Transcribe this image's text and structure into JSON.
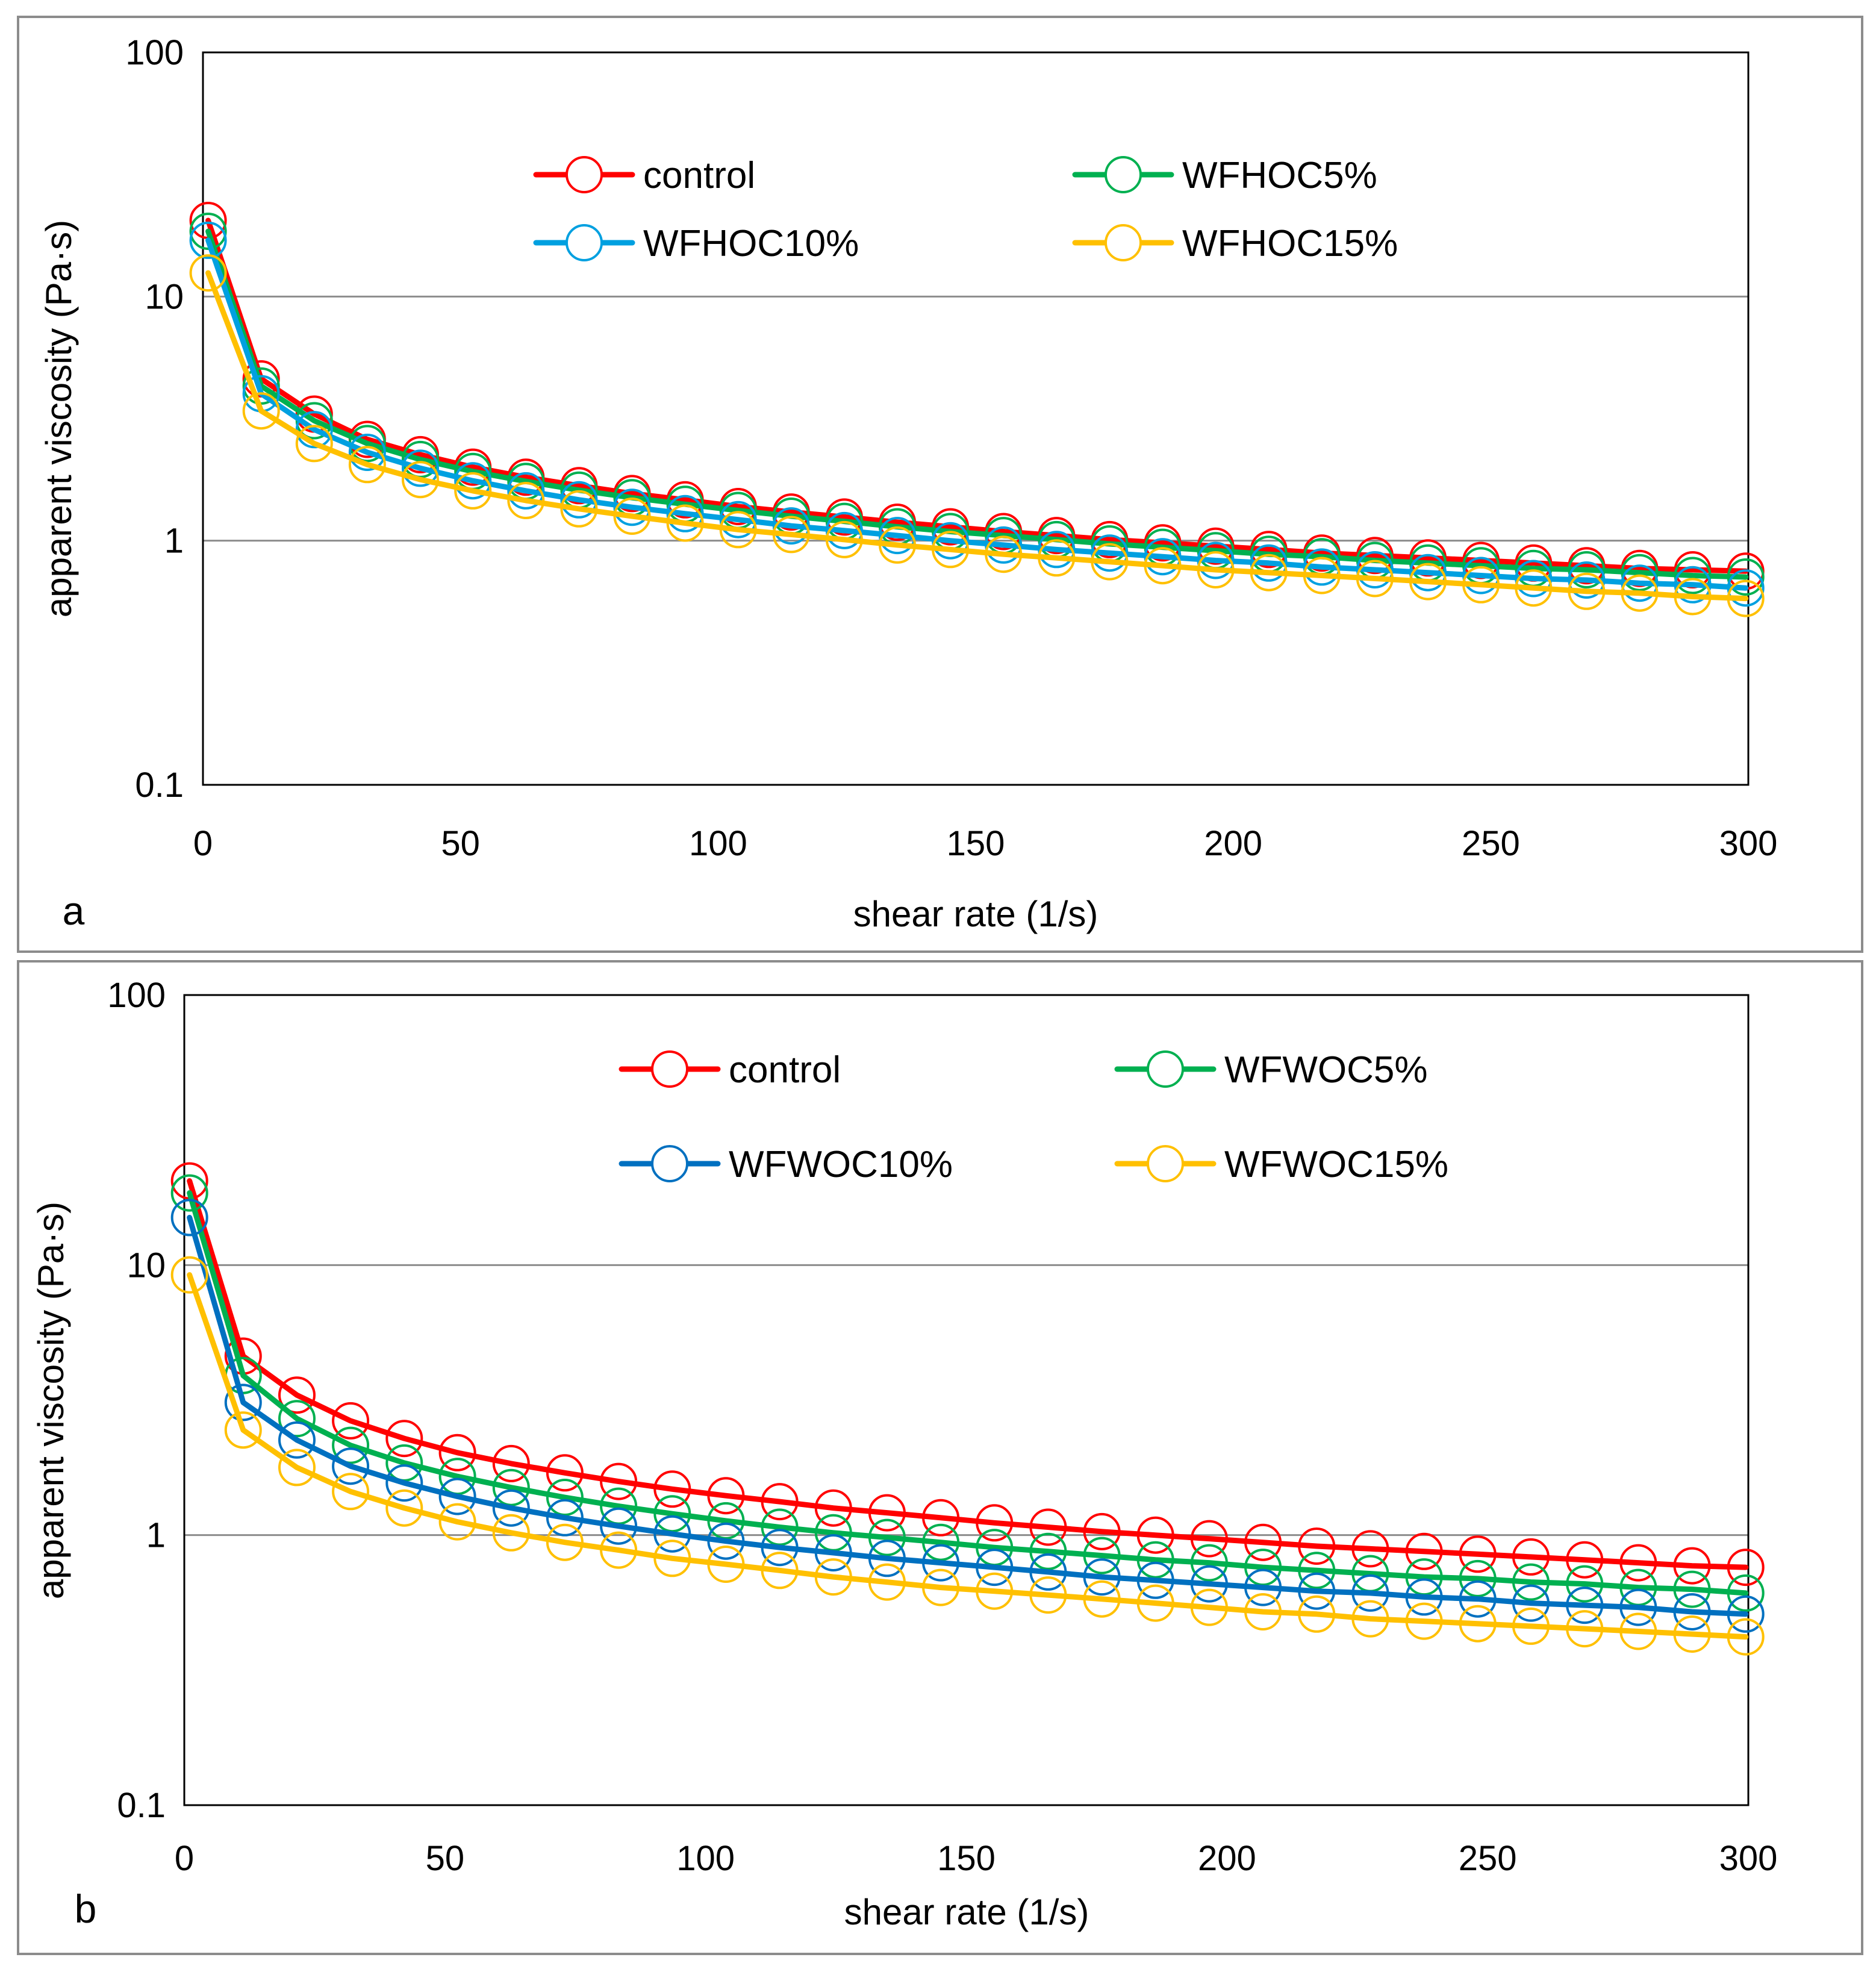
{
  "chart_data": [
    {
      "type": "line",
      "panel_label": "a",
      "title": "",
      "xlabel": "shear rate (1/s)",
      "ylabel": "apparent viscosity (Pa·s)",
      "xlim": [
        0,
        300
      ],
      "ylim": [
        0.1,
        100
      ],
      "yscale": "log",
      "xticks": [
        "0",
        "50",
        "100",
        "150",
        "200",
        "250",
        "300"
      ],
      "yticks": [
        "0.1",
        "1",
        "10",
        "100"
      ],
      "grid": true,
      "legend_position": "top-center",
      "x": [
        1,
        11.3,
        21.6,
        31.9,
        42.2,
        52.4,
        62.7,
        73,
        83.3,
        93.6,
        103.9,
        114.2,
        124.5,
        134.8,
        145.1,
        155.4,
        165.7,
        176,
        186.3,
        196.6,
        206.9,
        217.2,
        227.5,
        237.8,
        248.1,
        258.3,
        268.6,
        278.9,
        289.2,
        299.5
      ],
      "series": [
        {
          "name": "control",
          "color": "#ff0000",
          "values": [
            20.5,
            4.6,
            3.3,
            2.6,
            2.25,
            2.0,
            1.82,
            1.68,
            1.56,
            1.47,
            1.38,
            1.31,
            1.25,
            1.19,
            1.14,
            1.09,
            1.05,
            1.01,
            0.98,
            0.95,
            0.92,
            0.89,
            0.87,
            0.85,
            0.83,
            0.81,
            0.79,
            0.77,
            0.76,
            0.75
          ]
        },
        {
          "name": "WFHOC5%",
          "color": "#00b050",
          "values": [
            18.5,
            4.3,
            3.1,
            2.5,
            2.15,
            1.92,
            1.75,
            1.61,
            1.5,
            1.41,
            1.33,
            1.26,
            1.2,
            1.14,
            1.09,
            1.05,
            1.01,
            0.97,
            0.94,
            0.91,
            0.88,
            0.86,
            0.83,
            0.81,
            0.79,
            0.77,
            0.76,
            0.74,
            0.72,
            0.71
          ]
        },
        {
          "name": "WFHOC10%",
          "color": "#00a0e0",
          "values": [
            17.0,
            4.0,
            2.85,
            2.3,
            1.98,
            1.76,
            1.6,
            1.47,
            1.37,
            1.29,
            1.22,
            1.15,
            1.1,
            1.05,
            1.0,
            0.96,
            0.92,
            0.89,
            0.86,
            0.83,
            0.81,
            0.78,
            0.76,
            0.74,
            0.72,
            0.7,
            0.69,
            0.67,
            0.66,
            0.64
          ]
        },
        {
          "name": "WFHOC15%",
          "color": "#ffc000",
          "values": [
            12.5,
            3.4,
            2.5,
            2.05,
            1.78,
            1.6,
            1.46,
            1.35,
            1.26,
            1.18,
            1.11,
            1.06,
            1.01,
            0.96,
            0.92,
            0.88,
            0.85,
            0.82,
            0.79,
            0.76,
            0.74,
            0.72,
            0.7,
            0.68,
            0.66,
            0.64,
            0.62,
            0.61,
            0.59,
            0.58
          ]
        }
      ]
    },
    {
      "type": "line",
      "panel_label": "b",
      "title": "",
      "xlabel": "shear rate (1/s)",
      "ylabel": "apparent viscosity (Pa·s)",
      "xlim": [
        0,
        300
      ],
      "ylim": [
        0.1,
        100
      ],
      "yscale": "log",
      "xticks": [
        "0",
        "50",
        "100",
        "150",
        "200",
        "250",
        "300"
      ],
      "yticks": [
        "0.1",
        "1",
        "10",
        "100"
      ],
      "grid": true,
      "legend_position": "top-center",
      "x": [
        1,
        11.3,
        21.6,
        31.9,
        42.2,
        52.4,
        62.7,
        73,
        83.3,
        93.6,
        103.9,
        114.2,
        124.5,
        134.8,
        145.1,
        155.4,
        165.7,
        176,
        186.3,
        196.6,
        206.9,
        217.2,
        227.5,
        237.8,
        248.1,
        258.3,
        268.6,
        278.9,
        289.2,
        299.5
      ],
      "series": [
        {
          "name": "control",
          "color": "#ff0000",
          "values": [
            20.5,
            4.6,
            3.3,
            2.65,
            2.28,
            2.02,
            1.84,
            1.7,
            1.58,
            1.48,
            1.4,
            1.33,
            1.26,
            1.21,
            1.16,
            1.11,
            1.07,
            1.03,
            1.0,
            0.97,
            0.94,
            0.91,
            0.89,
            0.87,
            0.85,
            0.83,
            0.81,
            0.79,
            0.77,
            0.76
          ]
        },
        {
          "name": "WFWOC5%",
          "color": "#00b050",
          "values": [
            18.5,
            3.9,
            2.7,
            2.15,
            1.85,
            1.65,
            1.5,
            1.38,
            1.28,
            1.2,
            1.13,
            1.07,
            1.02,
            0.98,
            0.94,
            0.9,
            0.87,
            0.84,
            0.81,
            0.79,
            0.76,
            0.74,
            0.72,
            0.7,
            0.69,
            0.67,
            0.66,
            0.64,
            0.63,
            0.61
          ]
        },
        {
          "name": "WFWOC10%",
          "color": "#0070c0",
          "values": [
            15.0,
            3.1,
            2.25,
            1.8,
            1.56,
            1.39,
            1.26,
            1.16,
            1.08,
            1.01,
            0.95,
            0.9,
            0.86,
            0.82,
            0.79,
            0.76,
            0.73,
            0.7,
            0.68,
            0.66,
            0.64,
            0.62,
            0.61,
            0.59,
            0.58,
            0.56,
            0.55,
            0.54,
            0.52,
            0.51
          ]
        },
        {
          "name": "WFWOC15%",
          "color": "#ffc000",
          "values": [
            9.2,
            2.45,
            1.78,
            1.45,
            1.26,
            1.12,
            1.02,
            0.94,
            0.88,
            0.82,
            0.78,
            0.74,
            0.7,
            0.67,
            0.64,
            0.62,
            0.6,
            0.58,
            0.56,
            0.54,
            0.52,
            0.51,
            0.49,
            0.48,
            0.47,
            0.46,
            0.45,
            0.44,
            0.43,
            0.42
          ]
        }
      ]
    }
  ]
}
